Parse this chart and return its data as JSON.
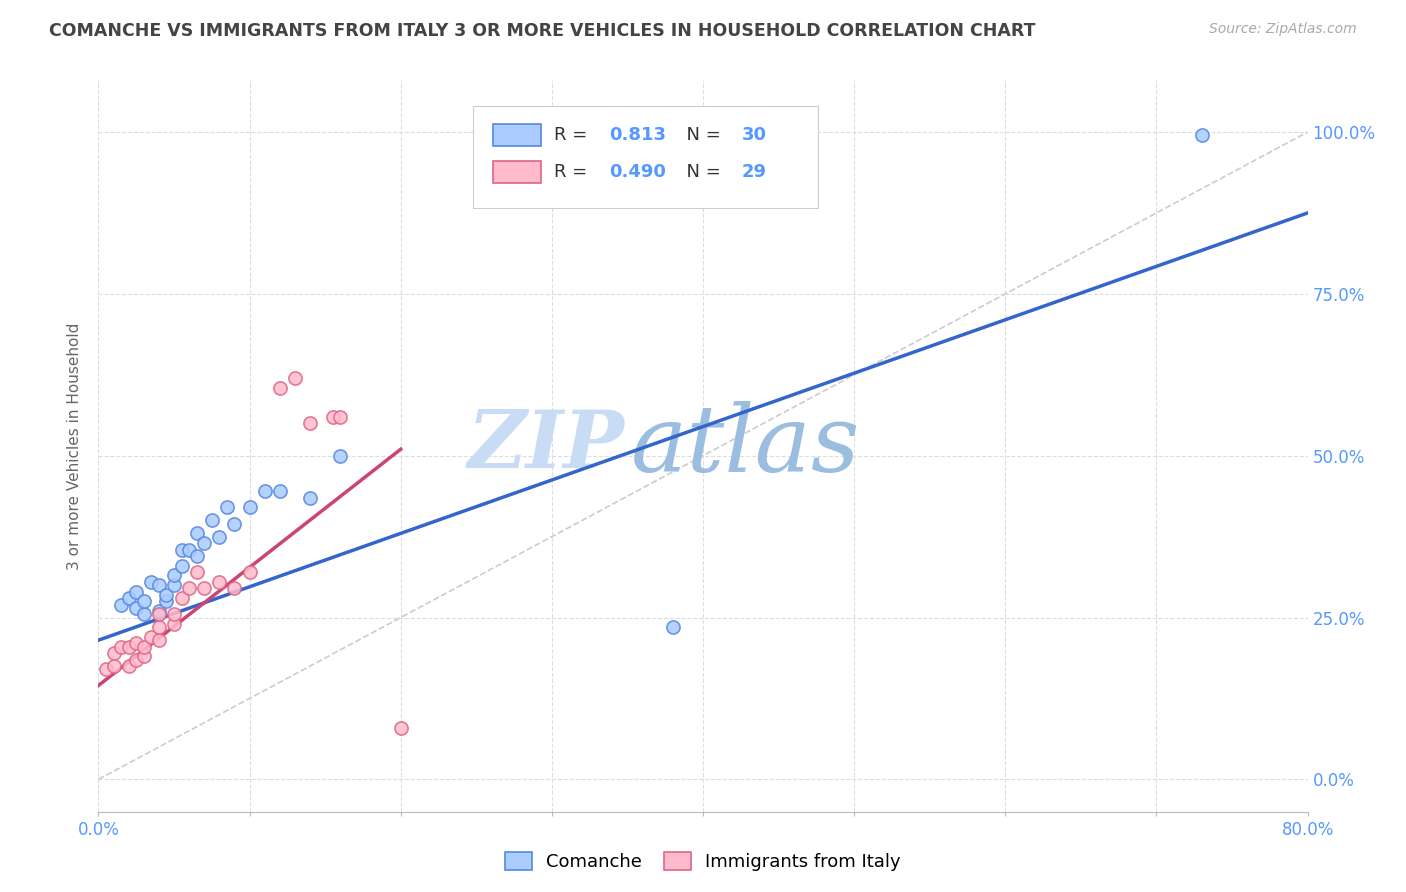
{
  "title": "COMANCHE VS IMMIGRANTS FROM ITALY 3 OR MORE VEHICLES IN HOUSEHOLD CORRELATION CHART",
  "source": "Source: ZipAtlas.com",
  "ylabel": "3 or more Vehicles in Household",
  "ytick_values": [
    0.0,
    0.25,
    0.5,
    0.75,
    1.0
  ],
  "ytick_labels_right": [
    "0.0%",
    "25.0%",
    "50.0%",
    "75.0%",
    "100.0%"
  ],
  "xlim": [
    0.0,
    0.8
  ],
  "ylim": [
    -0.05,
    1.08
  ],
  "blue_R": "0.813",
  "blue_N": "30",
  "pink_R": "0.490",
  "pink_N": "29",
  "blue_scatter_x": [
    0.015,
    0.02,
    0.025,
    0.025,
    0.03,
    0.03,
    0.035,
    0.04,
    0.04,
    0.045,
    0.045,
    0.05,
    0.05,
    0.055,
    0.055,
    0.06,
    0.065,
    0.065,
    0.07,
    0.075,
    0.08,
    0.085,
    0.09,
    0.1,
    0.11,
    0.12,
    0.14,
    0.16,
    0.38,
    0.73
  ],
  "blue_scatter_y": [
    0.27,
    0.28,
    0.265,
    0.29,
    0.255,
    0.275,
    0.305,
    0.26,
    0.3,
    0.275,
    0.285,
    0.3,
    0.315,
    0.33,
    0.355,
    0.355,
    0.345,
    0.38,
    0.365,
    0.4,
    0.375,
    0.42,
    0.395,
    0.42,
    0.445,
    0.445,
    0.435,
    0.5,
    0.235,
    0.995
  ],
  "pink_scatter_x": [
    0.005,
    0.01,
    0.01,
    0.015,
    0.02,
    0.02,
    0.025,
    0.025,
    0.03,
    0.03,
    0.035,
    0.04,
    0.04,
    0.04,
    0.05,
    0.05,
    0.055,
    0.06,
    0.065,
    0.07,
    0.08,
    0.09,
    0.1,
    0.12,
    0.13,
    0.14,
    0.155,
    0.16,
    0.2
  ],
  "pink_scatter_y": [
    0.17,
    0.175,
    0.195,
    0.205,
    0.175,
    0.205,
    0.185,
    0.21,
    0.19,
    0.205,
    0.22,
    0.215,
    0.235,
    0.255,
    0.24,
    0.255,
    0.28,
    0.295,
    0.32,
    0.295,
    0.305,
    0.295,
    0.32,
    0.605,
    0.62,
    0.55,
    0.56,
    0.56,
    0.08
  ],
  "blue_line_x": [
    0.0,
    0.8
  ],
  "blue_line_y": [
    0.215,
    0.875
  ],
  "pink_line_x": [
    0.0,
    0.2
  ],
  "pink_line_y": [
    0.145,
    0.51
  ],
  "diag_line_x": [
    0.0,
    0.8
  ],
  "diag_line_y": [
    0.0,
    1.0
  ],
  "watermark_zip": "ZIP",
  "watermark_atlas": "atlas",
  "background_color": "#ffffff",
  "blue_scatter_face": "#aaccff",
  "blue_scatter_edge": "#5588dd",
  "pink_scatter_face": "#ffbbcc",
  "pink_scatter_edge": "#dd6688",
  "blue_line_color": "#3366cc",
  "pink_line_color": "#cc4477",
  "diag_line_color": "#cccccc",
  "grid_color": "#dddddd",
  "title_color": "#444444",
  "axis_tick_color": "#5599ff",
  "watermark_zip_color": "#c8ddf5",
  "watermark_atlas_color": "#9bbde0",
  "marker_size": 90,
  "marker_linewidth": 1.2
}
